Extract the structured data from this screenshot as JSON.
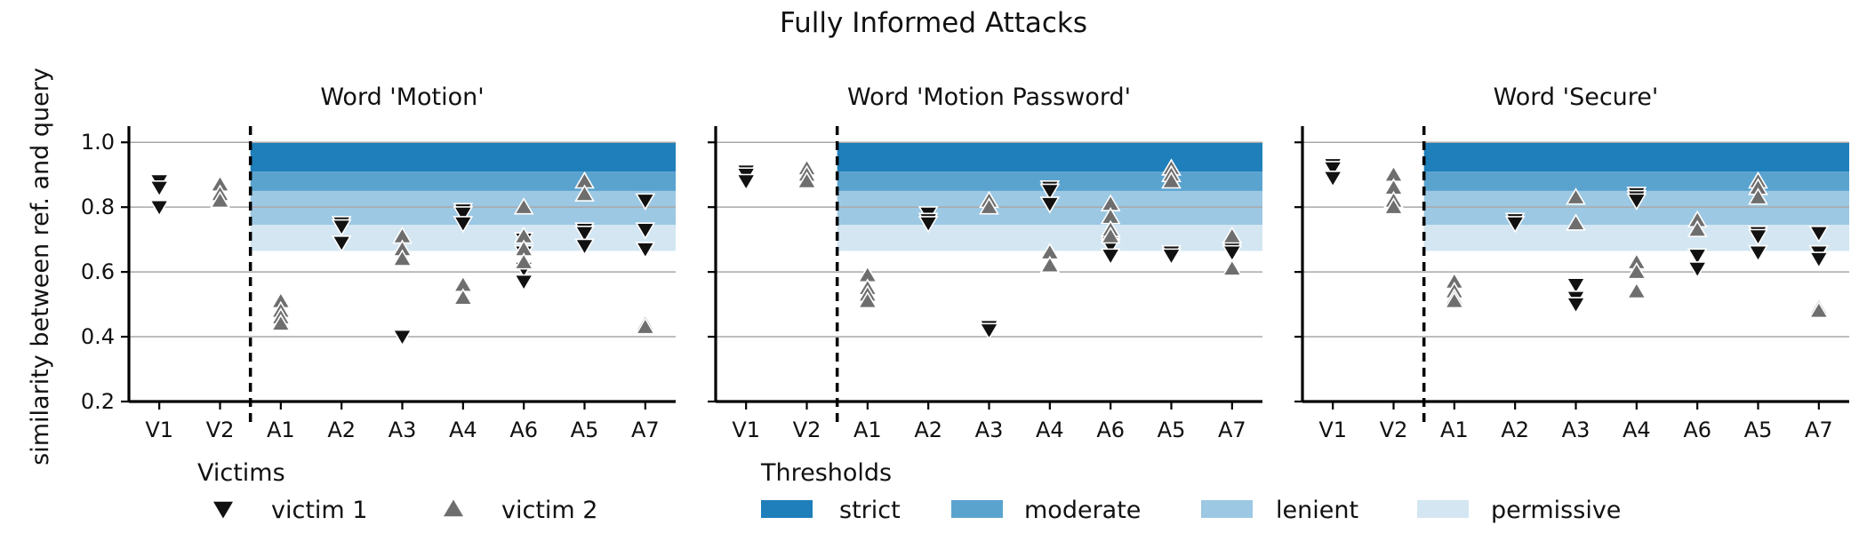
{
  "title": "Fully Informed Attacks",
  "ylabel": "similarity between ref. and query",
  "chart_data": [
    {
      "type": "scatter",
      "title": "Word 'Motion'",
      "categories": [
        "V1",
        "V2",
        "A1",
        "A2",
        "A3",
        "A4",
        "A6",
        "A5",
        "A7"
      ],
      "ylim": [
        0.2,
        1.05
      ],
      "yticks": [
        "0.2",
        "0.4",
        "0.6",
        "0.8",
        "1.0"
      ],
      "series": [
        {
          "name": "victim 1",
          "points": [
            [
              "V1",
              0.88
            ],
            [
              "V1",
              0.86
            ],
            [
              "V1",
              0.8
            ],
            [
              "A2",
              0.75
            ],
            [
              "A2",
              0.74
            ],
            [
              "A2",
              0.69
            ],
            [
              "A3",
              0.4
            ],
            [
              "A4",
              0.79
            ],
            [
              "A4",
              0.78
            ],
            [
              "A4",
              0.75
            ],
            [
              "A6",
              0.7
            ],
            [
              "A6",
              0.66
            ],
            [
              "A6",
              0.61
            ],
            [
              "A6",
              0.57
            ],
            [
              "A5",
              0.73
            ],
            [
              "A5",
              0.72
            ],
            [
              "A5",
              0.68
            ],
            [
              "A7",
              0.82
            ],
            [
              "A7",
              0.73
            ],
            [
              "A7",
              0.67
            ]
          ]
        },
        {
          "name": "victim 2",
          "points": [
            [
              "V2",
              0.87
            ],
            [
              "V2",
              0.84
            ],
            [
              "V2",
              0.82
            ],
            [
              "A1",
              0.51
            ],
            [
              "A1",
              0.48
            ],
            [
              "A1",
              0.46
            ],
            [
              "A1",
              0.44
            ],
            [
              "A3",
              0.71
            ],
            [
              "A3",
              0.67
            ],
            [
              "A3",
              0.64
            ],
            [
              "A4",
              0.56
            ],
            [
              "A4",
              0.52
            ],
            [
              "A6",
              0.8
            ],
            [
              "A6",
              0.71
            ],
            [
              "A6",
              0.67
            ],
            [
              "A6",
              0.63
            ],
            [
              "A5",
              0.88
            ],
            [
              "A5",
              0.84
            ],
            [
              "A7",
              0.44
            ],
            [
              "A7",
              0.43
            ]
          ]
        }
      ]
    },
    {
      "type": "scatter",
      "title": "Word 'Motion Password'",
      "categories": [
        "V1",
        "V2",
        "A1",
        "A2",
        "A3",
        "A4",
        "A6",
        "A5",
        "A7"
      ],
      "ylim": [
        0.2,
        1.05
      ],
      "yticks": [
        "0.2",
        "0.4",
        "0.6",
        "0.8",
        "1.0"
      ],
      "series": [
        {
          "name": "victim 1",
          "points": [
            [
              "V1",
              0.91
            ],
            [
              "V1",
              0.9
            ],
            [
              "V1",
              0.88
            ],
            [
              "A2",
              0.78
            ],
            [
              "A2",
              0.76
            ],
            [
              "A2",
              0.75
            ],
            [
              "A3",
              0.43
            ],
            [
              "A3",
              0.42
            ],
            [
              "A4",
              0.86
            ],
            [
              "A4",
              0.85
            ],
            [
              "A4",
              0.81
            ],
            [
              "A6",
              0.69
            ],
            [
              "A6",
              0.68
            ],
            [
              "A6",
              0.65
            ],
            [
              "A5",
              0.66
            ],
            [
              "A5",
              0.65
            ],
            [
              "A7",
              0.67
            ],
            [
              "A7",
              0.66
            ]
          ]
        },
        {
          "name": "victim 2",
          "points": [
            [
              "V2",
              0.92
            ],
            [
              "V2",
              0.9
            ],
            [
              "V2",
              0.88
            ],
            [
              "A1",
              0.59
            ],
            [
              "A1",
              0.55
            ],
            [
              "A1",
              0.53
            ],
            [
              "A1",
              0.51
            ],
            [
              "A3",
              0.82
            ],
            [
              "A3",
              0.8
            ],
            [
              "A4",
              0.66
            ],
            [
              "A4",
              0.62
            ],
            [
              "A6",
              0.81
            ],
            [
              "A6",
              0.77
            ],
            [
              "A6",
              0.73
            ],
            [
              "A6",
              0.71
            ],
            [
              "A5",
              0.92
            ],
            [
              "A5",
              0.9
            ],
            [
              "A5",
              0.88
            ],
            [
              "A7",
              0.71
            ],
            [
              "A7",
              0.61
            ]
          ]
        }
      ]
    },
    {
      "type": "scatter",
      "title": "Word 'Secure'",
      "categories": [
        "V1",
        "V2",
        "A1",
        "A2",
        "A3",
        "A4",
        "A6",
        "A5",
        "A7"
      ],
      "ylim": [
        0.2,
        1.05
      ],
      "yticks": [
        "0.2",
        "0.4",
        "0.6",
        "0.8",
        "1.0"
      ],
      "series": [
        {
          "name": "victim 1",
          "points": [
            [
              "V1",
              0.93
            ],
            [
              "V1",
              0.92
            ],
            [
              "V1",
              0.89
            ],
            [
              "A2",
              0.76
            ],
            [
              "A2",
              0.75
            ],
            [
              "A3",
              0.56
            ],
            [
              "A3",
              0.52
            ],
            [
              "A3",
              0.5
            ],
            [
              "A4",
              0.84
            ],
            [
              "A4",
              0.83
            ],
            [
              "A4",
              0.82
            ],
            [
              "A6",
              0.65
            ],
            [
              "A6",
              0.61
            ],
            [
              "A5",
              0.72
            ],
            [
              "A5",
              0.71
            ],
            [
              "A5",
              0.66
            ],
            [
              "A7",
              0.72
            ],
            [
              "A7",
              0.66
            ],
            [
              "A7",
              0.64
            ]
          ]
        },
        {
          "name": "victim 2",
          "points": [
            [
              "V2",
              0.9
            ],
            [
              "V2",
              0.86
            ],
            [
              "V2",
              0.82
            ],
            [
              "V2",
              0.8
            ],
            [
              "A1",
              0.57
            ],
            [
              "A1",
              0.54
            ],
            [
              "A1",
              0.52
            ],
            [
              "A1",
              0.51
            ],
            [
              "A3",
              0.83
            ],
            [
              "A3",
              0.75
            ],
            [
              "A4",
              0.63
            ],
            [
              "A4",
              0.6
            ],
            [
              "A4",
              0.54
            ],
            [
              "A6",
              0.76
            ],
            [
              "A6",
              0.73
            ],
            [
              "A5",
              0.88
            ],
            [
              "A5",
              0.86
            ],
            [
              "A5",
              0.83
            ],
            [
              "A7",
              0.49
            ],
            [
              "A7",
              0.48
            ]
          ]
        }
      ]
    }
  ],
  "thresholds": [
    {
      "name": "strict",
      "from": 0.91,
      "to": 1.0,
      "color": "#1f7fbb"
    },
    {
      "name": "moderate",
      "from": 0.85,
      "to": 0.91,
      "color": "#5ba3cf"
    },
    {
      "name": "lenient",
      "from": 0.745,
      "to": 0.85,
      "color": "#9cc8e3"
    },
    {
      "name": "permissive",
      "from": 0.665,
      "to": 0.745,
      "color": "#d3e6f2"
    }
  ],
  "legend": {
    "victims_title": "Victims",
    "victims": [
      {
        "name": "victim 1",
        "marker": "triangle-down",
        "color": "#111111"
      },
      {
        "name": "victim 2",
        "marker": "triangle-up",
        "color": "#6e6e6e"
      }
    ],
    "thresholds_title": "Thresholds"
  }
}
